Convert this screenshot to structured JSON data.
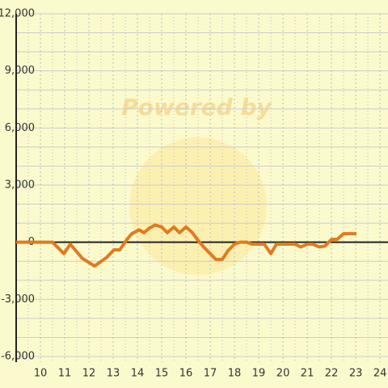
{
  "chart_data": {
    "type": "line",
    "watermark": "Powered by",
    "xlim": [
      9,
      24.33
    ],
    "xticks": [
      10,
      11,
      12,
      13,
      14,
      15,
      16,
      17,
      18,
      19,
      20,
      21,
      22,
      23,
      24
    ],
    "xminor": [
      9.5,
      10.5,
      11.5,
      12.5,
      13.5,
      14.5,
      15.5,
      16.5,
      17.5,
      18.5,
      19.5,
      20.5,
      21.5,
      22.5,
      23.5
    ],
    "ylim": [
      -6000,
      12000
    ],
    "yticks": [
      {
        "value": -6000,
        "label": "-6,000"
      },
      {
        "value": -3000,
        "label": "-3,000"
      },
      0,
      {
        "value": 3000,
        "label": "3,000"
      },
      {
        "value": 6000,
        "label": "6,000"
      },
      {
        "value": 9000,
        "label": "9,000"
      },
      {
        "value": 12000,
        "label": "12,000"
      }
    ],
    "yminor": [
      -5000,
      -4000,
      -2000,
      -1000,
      1000,
      2000,
      4000,
      5000,
      7000,
      8000,
      10000,
      11000
    ],
    "grid": true,
    "series": [
      {
        "color": "#e07b20",
        "x": [
          9,
          10.5,
          10.97,
          11.23,
          11.73,
          12.23,
          12.73,
          13.03,
          13.27,
          13.57,
          13.77,
          14.07,
          14.27,
          14.5,
          14.73,
          15,
          15.23,
          15.5,
          15.73,
          16,
          16.23,
          16.5,
          16.73,
          17,
          17.23,
          17.5,
          17.73,
          18,
          18.23,
          18.5,
          18.73,
          19,
          19.23,
          19.5,
          19.73,
          20,
          20.5,
          20.73,
          21,
          21.23,
          21.5,
          21.73,
          22,
          22.23,
          22.5,
          23.03
        ],
        "values": [
          0,
          0,
          -600,
          -100,
          -850,
          -1250,
          -800,
          -400,
          -400,
          150,
          450,
          650,
          500,
          750,
          900,
          800,
          500,
          800,
          500,
          800,
          550,
          100,
          -250,
          -600,
          -900,
          -900,
          -450,
          -100,
          0,
          0,
          -100,
          -100,
          -100,
          -600,
          -100,
          -100,
          -100,
          -250,
          -100,
          -100,
          -250,
          -200,
          150,
          150,
          450,
          450
        ]
      }
    ]
  }
}
